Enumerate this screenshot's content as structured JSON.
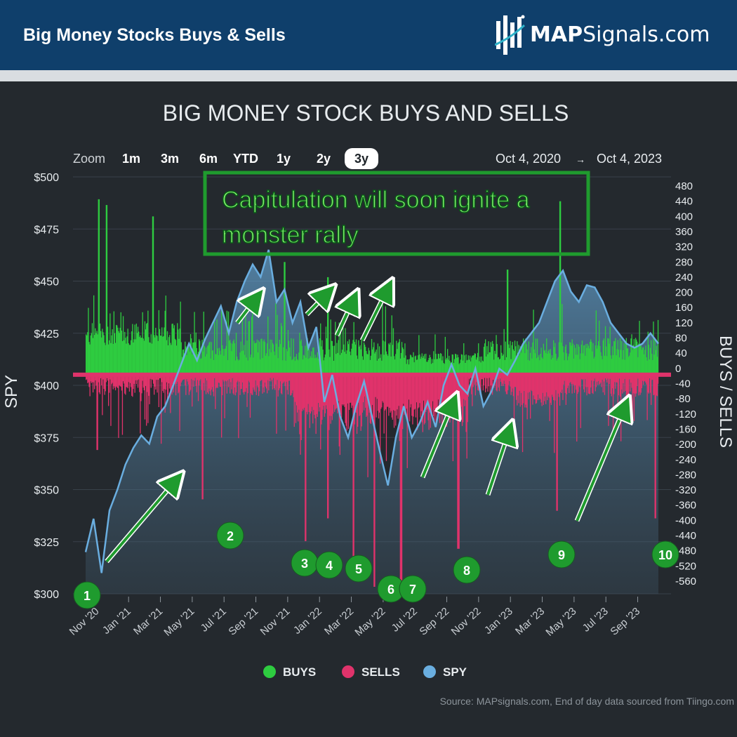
{
  "header": {
    "title": "Big Money Stocks Buys & Sells"
  },
  "logo": {
    "bold": "MAP",
    "rest": "Signals.com"
  },
  "chart_title": "BIG MONEY STOCK BUYS AND SELLS",
  "zoom": {
    "label": "Zoom",
    "options": [
      "1m",
      "3m",
      "6m",
      "YTD",
      "1y",
      "2y",
      "3y"
    ],
    "selected": "3y"
  },
  "range": {
    "from": "Oct 4, 2020",
    "arrow": "→",
    "to": "Oct 4, 2023"
  },
  "annotation": {
    "line1": "Capitulation will soon ignite a",
    "line2": "monster rally"
  },
  "legend": [
    {
      "label": "BUYS",
      "color": "#2ecc40"
    },
    {
      "label": "SELLS",
      "color": "#e0336b"
    },
    {
      "label": "SPY",
      "color": "#6aaee0"
    }
  ],
  "source": "Source: MAPsignals.com, End of day data sourced from Tiingo.com",
  "colors": {
    "buys": "#2ecc40",
    "sells": "#e0336b",
    "spy": "#6aaee0",
    "badge": "#1f9b2e",
    "arrow": "#1f9b2e"
  },
  "chart_data": {
    "type": "line",
    "left_axis": {
      "label": "SPY",
      "ticks": [
        "$500",
        "$475",
        "$450",
        "$425",
        "$400",
        "$375",
        "$350",
        "$325",
        "$300"
      ],
      "range": [
        300,
        500
      ]
    },
    "right_axis": {
      "label": "BUYS / SELLS",
      "ticks": [
        "480",
        "440",
        "400",
        "360",
        "320",
        "280",
        "240",
        "200",
        "160",
        "120",
        "80",
        "40",
        "0",
        "-40",
        "-80",
        "-120",
        "-160",
        "-200",
        "-240",
        "-280",
        "-320",
        "-360",
        "-400",
        "-440",
        "-480",
        "-520",
        "-560"
      ],
      "range": [
        -560,
        480
      ]
    },
    "x_ticks": [
      "Nov '20",
      "Jan '21",
      "Mar '21",
      "May '21",
      "Jul '21",
      "Sep '21",
      "Nov '21",
      "Jan '22",
      "Mar '22",
      "May '22",
      "Jul '22",
      "Sep '22",
      "Nov '22",
      "Jan '23",
      "Mar '23",
      "May '23",
      "Jul '23",
      "Sep '23"
    ],
    "spy_series": {
      "name": "SPY",
      "x_month_index": [
        0,
        0.5,
        1,
        1.5,
        2,
        2.5,
        3,
        3.5,
        4,
        4.5,
        5,
        5.5,
        6,
        6.5,
        7,
        7.5,
        8,
        8.5,
        9,
        9.5,
        10,
        10.5,
        11,
        11.5,
        12,
        12.5,
        13,
        13.5,
        14,
        14.5,
        15,
        15.5,
        16,
        16.5,
        17,
        17.5,
        18,
        18.5,
        19,
        19.5,
        20,
        20.5,
        21,
        21.5,
        22,
        22.5,
        23,
        23.5,
        24,
        24.5,
        25,
        25.5,
        26,
        26.5,
        27,
        27.5,
        28,
        28.5,
        29,
        29.5,
        30,
        30.5,
        31,
        31.5,
        32,
        32.5,
        33,
        33.5,
        34,
        34.5,
        35,
        35.5,
        36
      ],
      "values": [
        320,
        336,
        310,
        340,
        350,
        362,
        370,
        376,
        372,
        385,
        390,
        400,
        410,
        420,
        412,
        422,
        430,
        438,
        425,
        440,
        450,
        458,
        452,
        465,
        440,
        446,
        430,
        440,
        418,
        428,
        392,
        405,
        385,
        375,
        390,
        402,
        385,
        368,
        352,
        375,
        390,
        375,
        382,
        392,
        380,
        400,
        410,
        400,
        396,
        408,
        390,
        397,
        408,
        405,
        412,
        420,
        425,
        430,
        440,
        450,
        455,
        445,
        440,
        448,
        447,
        440,
        430,
        425,
        420,
        418,
        420,
        425,
        420
      ]
    },
    "buys_sells_series": {
      "buys_peaks": [
        {
          "month": 0.8,
          "value": 445
        },
        {
          "month": 1.3,
          "value": 430
        },
        {
          "month": 4.2,
          "value": 400
        },
        {
          "month": 12.5,
          "value": 280
        },
        {
          "month": 15.2,
          "value": 240
        },
        {
          "month": 26.5,
          "value": 260
        },
        {
          "month": 29.8,
          "value": 440
        }
      ],
      "sells_troughs": [
        {
          "month": 0.7,
          "value": -200
        },
        {
          "month": 7.3,
          "value": -330
        },
        {
          "month": 13.8,
          "value": -440
        },
        {
          "month": 15.2,
          "value": -380
        },
        {
          "month": 16.8,
          "value": -480
        },
        {
          "month": 18.1,
          "value": -560
        },
        {
          "month": 19.8,
          "value": -560
        },
        {
          "month": 23.4,
          "value": -460
        },
        {
          "month": 29.6,
          "value": -360
        },
        {
          "month": 35.8,
          "value": -380
        }
      ]
    },
    "markers": [
      "1",
      "2",
      "3",
      "4",
      "5",
      "6",
      "7",
      "8",
      "9",
      "10"
    ]
  }
}
